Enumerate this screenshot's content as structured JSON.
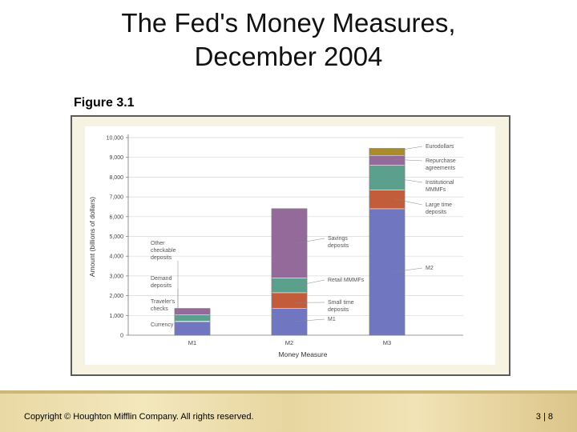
{
  "slide": {
    "title_line1": "The Fed's Money Measures,",
    "title_line2": "December 2004",
    "figure_label": "Figure 3.1",
    "copyright": "Copyright © Houghton Mifflin Company.  All rights reserved.",
    "page_number": "3 | 8"
  },
  "colors": {
    "frame_bg": "#f6f3e2",
    "frame_border": "#5b5b5b",
    "plot_bg": "#ffffff",
    "currency": "#7077c0",
    "travelers_checks": "#c25c3a",
    "demand_deposits": "#5aa08c",
    "other_checkable": "#936a9a",
    "m1": "#7077c0",
    "small_time": "#c25c3a",
    "retail_mmmf": "#5aa08c",
    "savings": "#936a9a",
    "m2": "#7077c0",
    "large_time": "#c25c3a",
    "institutional_mmmf": "#5aa08c",
    "repurchase": "#936a9a",
    "eurodollars": "#a98b2a"
  },
  "chart_data": {
    "type": "bar",
    "stacked": true,
    "categories": [
      "M1",
      "M2",
      "M3"
    ],
    "xlabel": "Money Measure",
    "ylabel": "Amount (billions of dollars)",
    "ylim": [
      0,
      10000
    ],
    "yticks": [
      0,
      1000,
      2000,
      3000,
      4000,
      5000,
      6000,
      7000,
      8000,
      9000,
      10000
    ],
    "ytick_labels": [
      "0",
      "1,000",
      "2,000",
      "3,000",
      "4,000",
      "5,000",
      "6,000",
      "7,000",
      "8,000",
      "9,000",
      "10,000"
    ],
    "grid": true,
    "bars": [
      {
        "category": "M1",
        "segments": [
          {
            "key": "currency",
            "value": 700
          },
          {
            "key": "travelers_checks",
            "value": 8
          },
          {
            "key": "demand_deposits",
            "value": 320
          },
          {
            "key": "other_checkable",
            "value": 320
          }
        ]
      },
      {
        "category": "M2",
        "segments": [
          {
            "key": "m1",
            "value": 1350
          },
          {
            "key": "small_time",
            "value": 800
          },
          {
            "key": "retail_mmmf",
            "value": 750
          },
          {
            "key": "savings",
            "value": 3500
          }
        ]
      },
      {
        "category": "M3",
        "segments": [
          {
            "key": "m2",
            "value": 6400
          },
          {
            "key": "large_time",
            "value": 950
          },
          {
            "key": "institutional_mmmf",
            "value": 1250
          },
          {
            "key": "repurchase",
            "value": 500
          },
          {
            "key": "eurodollars",
            "value": 350
          }
        ]
      }
    ],
    "annotations": [
      {
        "id": "other-checkable",
        "lines": [
          "Other",
          "checkable",
          "deposits"
        ],
        "side": "left",
        "bar": 0,
        "target": 1200
      },
      {
        "id": "demand-deposits",
        "lines": [
          "Demand",
          "deposits"
        ],
        "side": "left",
        "bar": 0,
        "target": 900
      },
      {
        "id": "travelers-checks",
        "lines": [
          "Traveler's",
          "checks"
        ],
        "side": "left",
        "bar": 0,
        "target": 700
      },
      {
        "id": "currency",
        "lines": [
          "Currency"
        ],
        "side": "left",
        "bar": 0,
        "target": 400
      },
      {
        "id": "savings-deposits",
        "lines": [
          "Savings",
          "deposits"
        ],
        "side": "right",
        "bar": 1,
        "target": 4650
      },
      {
        "id": "retail-mmmfs",
        "lines": [
          "Retail MMMFs"
        ],
        "side": "right",
        "bar": 1,
        "target": 2500
      },
      {
        "id": "small-time-deposits",
        "lines": [
          "Small time",
          "deposits"
        ],
        "side": "right",
        "bar": 1,
        "target": 1650
      },
      {
        "id": "m1",
        "lines": [
          "M1"
        ],
        "side": "right",
        "bar": 1,
        "target": 700
      },
      {
        "id": "eurodollars",
        "lines": [
          "Eurodollars"
        ],
        "side": "right",
        "bar": 2,
        "target": 9320
      },
      {
        "id": "repurchase-agreements",
        "lines": [
          "Repurchase",
          "agreements"
        ],
        "side": "right",
        "bar": 2,
        "target": 8900
      },
      {
        "id": "institutional-mmmfs",
        "lines": [
          "Institutional",
          "MMMFs"
        ],
        "side": "right",
        "bar": 2,
        "target": 7950
      },
      {
        "id": "large-time-deposits",
        "lines": [
          "Large time",
          "deposits"
        ],
        "side": "right",
        "bar": 2,
        "target": 6900
      },
      {
        "id": "m2",
        "lines": [
          "M2"
        ],
        "side": "right",
        "bar": 2,
        "target": 3200
      }
    ]
  }
}
